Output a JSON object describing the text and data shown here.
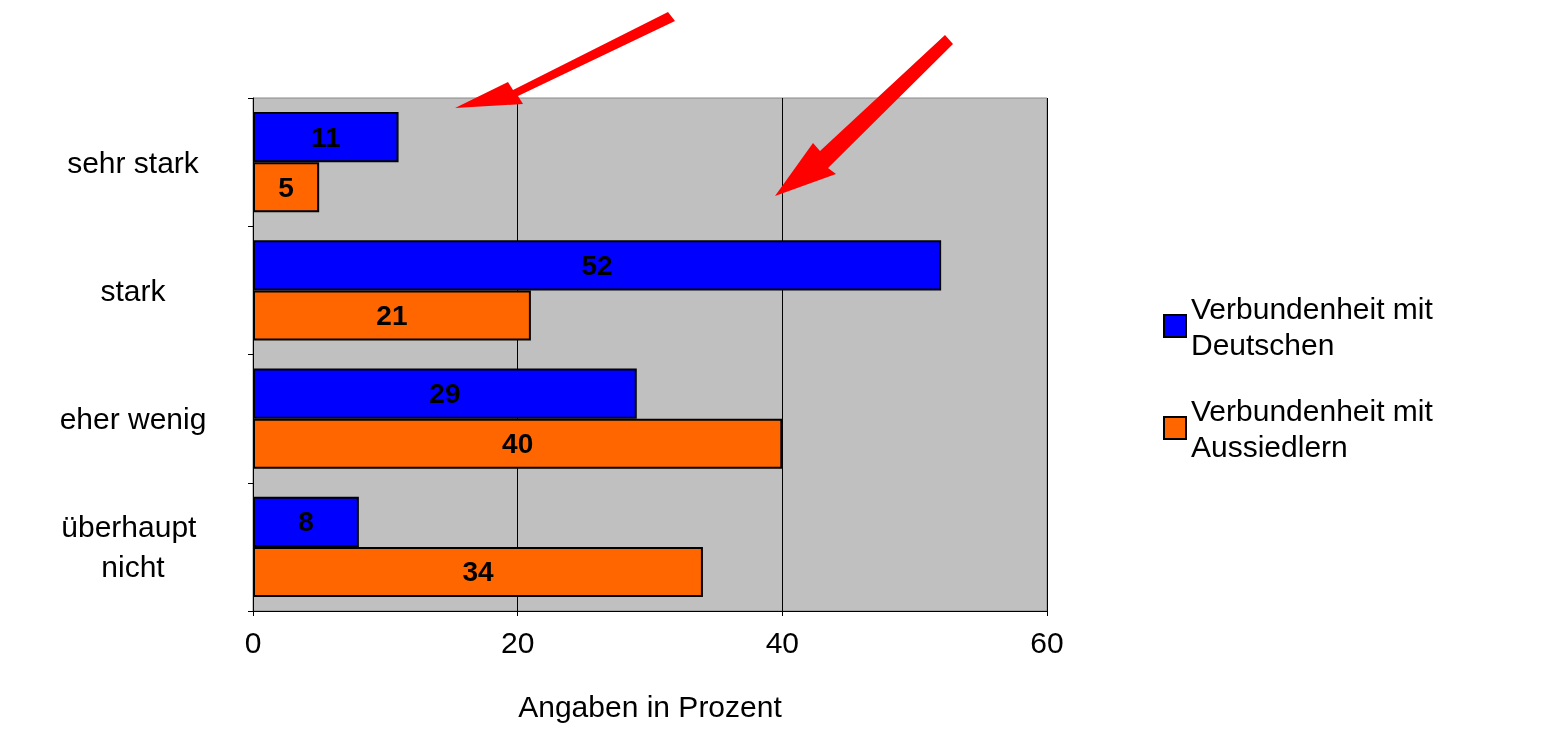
{
  "chart_data": {
    "type": "bar",
    "orientation": "horizontal",
    "xlabel": "Angaben in Prozent",
    "categories": [
      "sehr stark",
      "stark",
      "eher wenig",
      "überhaupt nicht"
    ],
    "series": [
      {
        "name": "Verbundenheit mit Deutschen",
        "color": "#0000ff",
        "values": [
          11,
          52,
          29,
          8
        ]
      },
      {
        "name": "Verbundenheit mit Aussiedlern",
        "color": "#ff6600",
        "values": [
          5,
          21,
          40,
          34
        ]
      }
    ],
    "xlim": [
      0,
      60
    ],
    "xticks": [
      0,
      20,
      40,
      60
    ],
    "grid": "x",
    "legend": "right",
    "data_labels": true
  }
}
